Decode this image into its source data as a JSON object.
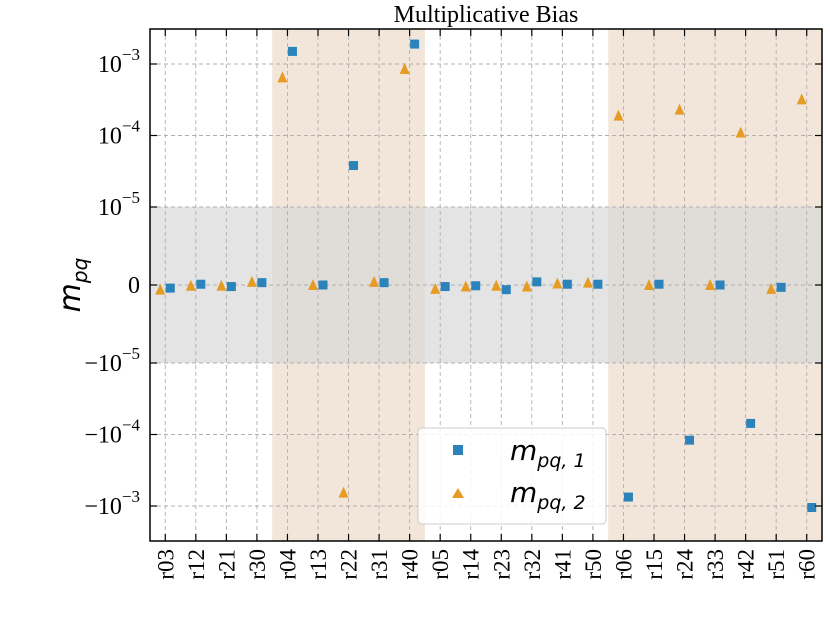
{
  "chart_data": {
    "type": "scatter",
    "title": "Multiplicative Bias",
    "ylabel": "m_pq",
    "xlabel": "",
    "y_scale": "symlog",
    "y_linthresh": 1e-05,
    "ylim": [
      -0.0025,
      0.0025
    ],
    "grid": true,
    "legend_position": "lower-center",
    "categories": [
      "r03",
      "r12",
      "r21",
      "r30",
      "r04",
      "r13",
      "r22",
      "r31",
      "r40",
      "r05",
      "r14",
      "r23",
      "r32",
      "r41",
      "r50",
      "r06",
      "r15",
      "r24",
      "r33",
      "r42",
      "r51",
      "r60"
    ],
    "y_ticks": [
      {
        "value": 0.001,
        "label": "10",
        "exp": "−3"
      },
      {
        "value": 0.0001,
        "label": "10",
        "exp": "−4"
      },
      {
        "value": 1e-05,
        "label": "10",
        "exp": "−5"
      },
      {
        "value": 0,
        "label": "0",
        "exp": ""
      },
      {
        "value": -1e-05,
        "label": "−10",
        "exp": "−5"
      },
      {
        "value": -0.0001,
        "label": "−10",
        "exp": "−4"
      },
      {
        "value": -0.001,
        "label": "−10",
        "exp": "−3"
      }
    ],
    "shaded_regions": [
      {
        "from": "r04",
        "to": "r40",
        "color": "#f2e6da"
      },
      {
        "from": "r06",
        "to": "r60",
        "color": "#f2e6da"
      }
    ],
    "band": {
      "from": -1e-05,
      "to": 1e-05,
      "color": "#d9d9d9"
    },
    "series": [
      {
        "name": "m_pq,1",
        "marker": "square",
        "color": "#2b83ba",
        "values": [
          -4e-07,
          1e-07,
          -2e-07,
          3e-07,
          0.0015,
          0.0,
          3.8e-05,
          3e-07,
          0.0019,
          -2e-07,
          -1e-07,
          -6e-07,
          4e-07,
          1e-07,
          1e-07,
          -0.00075,
          1e-07,
          -0.00012,
          0.0,
          -7e-05,
          -3e-07,
          -0.00105
        ]
      },
      {
        "name": "m_pq,2",
        "marker": "triangle",
        "color": "#e69c24",
        "values": [
          -6e-07,
          -1e-07,
          -1e-07,
          4e-07,
          0.00065,
          0.0,
          -0.00065,
          4e-07,
          0.00085,
          -5e-07,
          -2e-07,
          -1e-07,
          -2e-07,
          2e-07,
          3e-07,
          0.00019,
          0.0,
          0.00023,
          0.0,
          0.00011,
          -5e-07,
          0.00032
        ]
      }
    ]
  },
  "legend": {
    "items": [
      {
        "base": "m",
        "sub": "pq, 1"
      },
      {
        "base": "m",
        "sub": "pq, 2"
      }
    ]
  },
  "axis": {
    "ylabel_base": "m",
    "ylabel_sub": "pq"
  }
}
